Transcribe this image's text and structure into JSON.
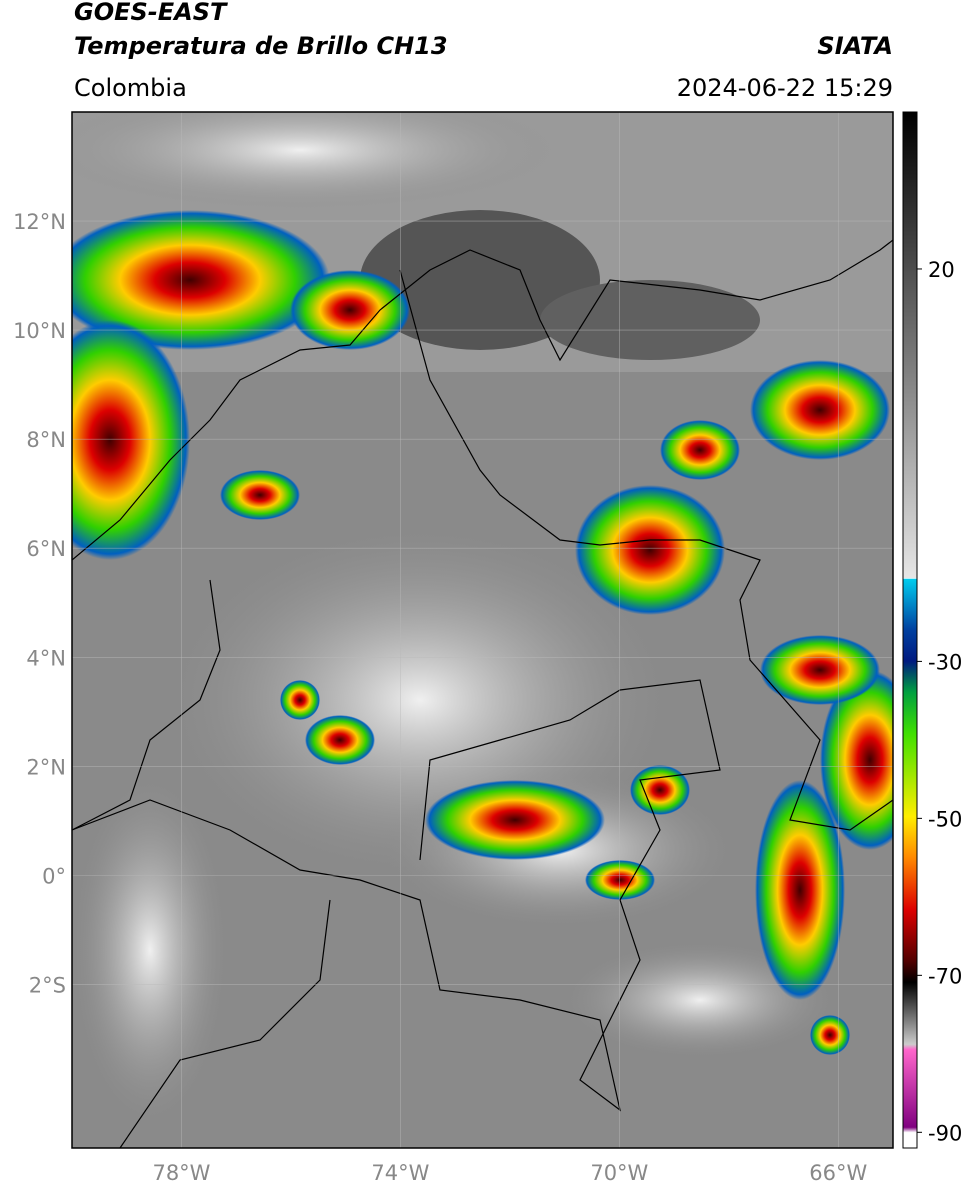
{
  "header": {
    "title": "GOES-EAST",
    "subtitle": "Temperatura de Brillo CH13",
    "source": "SIATA",
    "region": "Colombia",
    "datetime": "2024-06-22 15:29"
  },
  "map": {
    "lon_range": [
      -80,
      -65
    ],
    "lat_range": [
      -5,
      14
    ],
    "lat_ticks": [
      {
        "value": 12,
        "label": "12°N"
      },
      {
        "value": 10,
        "label": "10°N"
      },
      {
        "value": 8,
        "label": "8°N"
      },
      {
        "value": 6,
        "label": "6°N"
      },
      {
        "value": 4,
        "label": "4°N"
      },
      {
        "value": 2,
        "label": "2°N"
      },
      {
        "value": 0,
        "label": "0°"
      },
      {
        "value": -2,
        "label": "2°S"
      }
    ],
    "lon_ticks": [
      {
        "value": -78,
        "label": "78°W"
      },
      {
        "value": -74,
        "label": "74°W"
      },
      {
        "value": -70,
        "label": "70°W"
      },
      {
        "value": -66,
        "label": "66°W"
      }
    ]
  },
  "colorbar": {
    "range": [
      -92,
      40
    ],
    "ticks": [
      20,
      -30,
      -50,
      -70,
      -90
    ]
  }
}
